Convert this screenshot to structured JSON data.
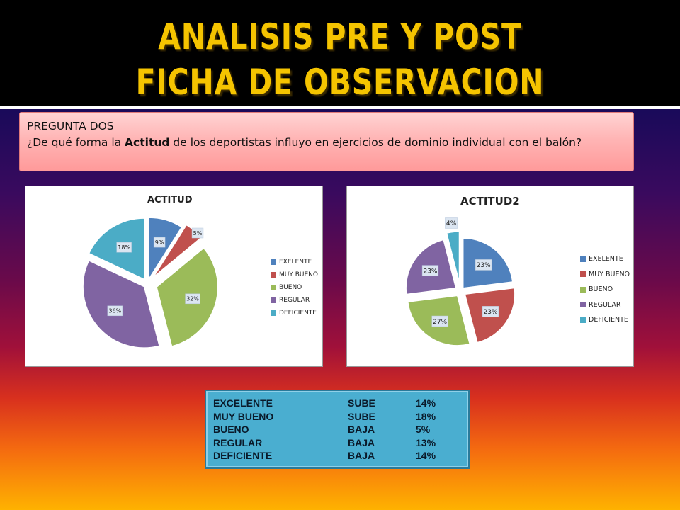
{
  "header": {
    "line1": "ANALISIS PRE Y POST",
    "line2": "FICHA DE OBSERVACION"
  },
  "question": {
    "title": "PREGUNTA DOS",
    "text_before": "¿De qué forma la ",
    "text_bold": "Actitud",
    "text_after": " de los deportistas influyo en ejercicios de dominio individual con el balón?"
  },
  "chart_data": [
    {
      "type": "pie",
      "title": "ACTITUD",
      "categories": [
        "EXELENTE",
        "MUY BUENO",
        "BUENO",
        "REGULAR",
        "DEFICIENTE"
      ],
      "values": [
        9,
        5,
        32,
        36,
        18
      ],
      "labels": [
        "9%",
        "5%",
        "32%",
        "36%",
        "18%"
      ],
      "colors": [
        "#4f81bd",
        "#c0504d",
        "#9bbb59",
        "#8064a2",
        "#4bacc6"
      ],
      "legend_position": "right"
    },
    {
      "type": "pie",
      "title": "ACTITUD2",
      "categories": [
        "EXELENTE",
        "MUY BUENO",
        "BUENO",
        "REGULAR",
        "DEFICIENTE"
      ],
      "values": [
        23,
        23,
        27,
        23,
        4
      ],
      "labels": [
        "23%",
        "23%",
        "27%",
        "23%",
        "4%"
      ],
      "colors": [
        "#4f81bd",
        "#c0504d",
        "#9bbb59",
        "#8064a2",
        "#4bacc6"
      ],
      "legend_position": "right"
    }
  ],
  "summary_table": [
    {
      "category": "EXCELENTE",
      "trend": "SUBE",
      "change": "14%"
    },
    {
      "category": "MUY BUENO",
      "trend": "SUBE",
      "change": "18%"
    },
    {
      "category": "BUENO",
      "trend": "BAJA",
      "change": "5%"
    },
    {
      "category": "REGULAR",
      "trend": "BAJA",
      "change": "13%"
    },
    {
      "category": "DEFICIENTE",
      "trend": "BAJA",
      "change": "14%"
    }
  ]
}
